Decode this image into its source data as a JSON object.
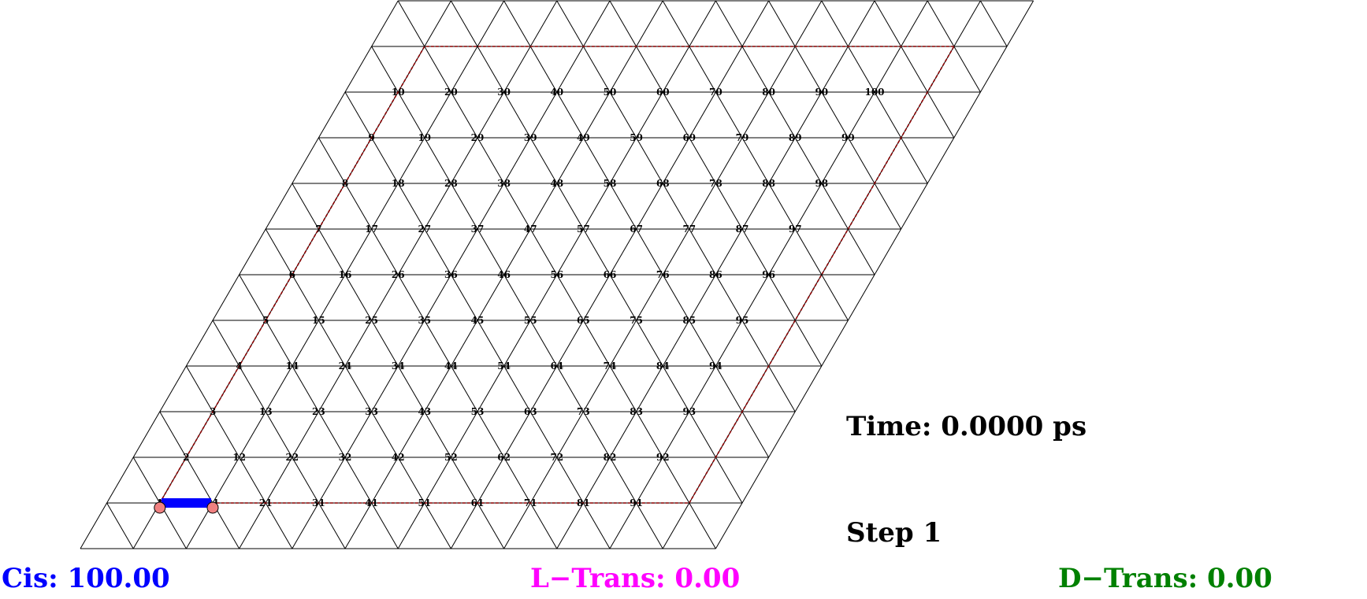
{
  "lattice": {
    "rows": 12,
    "cols": 12,
    "line_color": "#000000",
    "boundary_color": "#8b0000",
    "node_label_grid": [
      [
        "1",
        "11",
        "21",
        "31",
        "41",
        "51",
        "61",
        "71",
        "81",
        "91"
      ],
      [
        "2",
        "12",
        "22",
        "32",
        "42",
        "52",
        "62",
        "72",
        "82",
        "92"
      ],
      [
        "3",
        "13",
        "23",
        "33",
        "43",
        "53",
        "63",
        "73",
        "83",
        "93"
      ],
      [
        "4",
        "14",
        "24",
        "34",
        "44",
        "54",
        "64",
        "74",
        "84",
        "94"
      ],
      [
        "5",
        "15",
        "25",
        "35",
        "45",
        "55",
        "65",
        "75",
        "85",
        "95"
      ],
      [
        "6",
        "16",
        "26",
        "36",
        "46",
        "56",
        "66",
        "76",
        "86",
        "96"
      ],
      [
        "7",
        "17",
        "27",
        "37",
        "47",
        "57",
        "67",
        "77",
        "87",
        "97"
      ],
      [
        "8",
        "18",
        "28",
        "38",
        "48",
        "58",
        "68",
        "78",
        "88",
        "98"
      ],
      [
        "9",
        "19",
        "29",
        "39",
        "49",
        "59",
        "69",
        "79",
        "89",
        "99"
      ],
      [
        "10",
        "20",
        "30",
        "40",
        "50",
        "60",
        "70",
        "80",
        "90",
        "100"
      ]
    ]
  },
  "molecule": {
    "bond_color": "#0000ff",
    "atom_color": "#f08080",
    "site_a": "1",
    "site_b": "11"
  },
  "time_label": "Time: 0.0000 ps",
  "step_label": "Step 1",
  "stats": {
    "cis": {
      "text": "Cis: 100.00",
      "color": "#0000ff"
    },
    "l_trans": {
      "text": "L−Trans: 0.00",
      "color": "#ff00ff"
    },
    "d_trans": {
      "text": "D−Trans: 0.00",
      "color": "#008000"
    }
  }
}
